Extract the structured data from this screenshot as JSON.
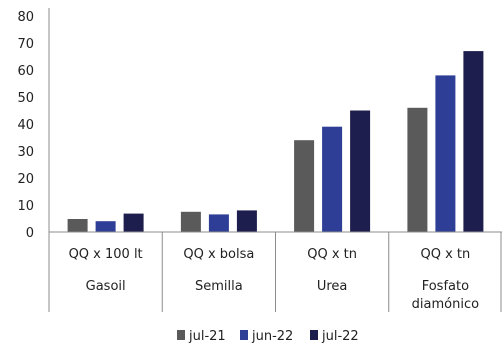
{
  "chart_data": {
    "type": "bar",
    "title": "",
    "xlabel": "",
    "ylabel": "",
    "ylim": [
      0,
      80
    ],
    "yticks": [
      0,
      10,
      20,
      30,
      40,
      50,
      60,
      70,
      80
    ],
    "grid": false,
    "legend_position": "bottom",
    "categories": [
      {
        "unit": "QQ x 100 lt",
        "lines": [
          "Gasoil"
        ]
      },
      {
        "unit": "QQ x bolsa",
        "lines": [
          "Semilla"
        ]
      },
      {
        "unit": "QQ x tn",
        "lines": [
          "Urea"
        ]
      },
      {
        "unit": "QQ x tn",
        "lines": [
          "Fosfato",
          "diamónico"
        ]
      }
    ],
    "series": [
      {
        "name": "jul-21",
        "color": "#5a5a5a",
        "values": [
          4.8,
          7.5,
          34,
          46
        ]
      },
      {
        "name": "jun-22",
        "color": "#2e3e96",
        "values": [
          4.0,
          6.5,
          39,
          58
        ]
      },
      {
        "name": "jul-22",
        "color": "#1e1e4e",
        "values": [
          6.8,
          8.0,
          45,
          67
        ]
      }
    ]
  }
}
